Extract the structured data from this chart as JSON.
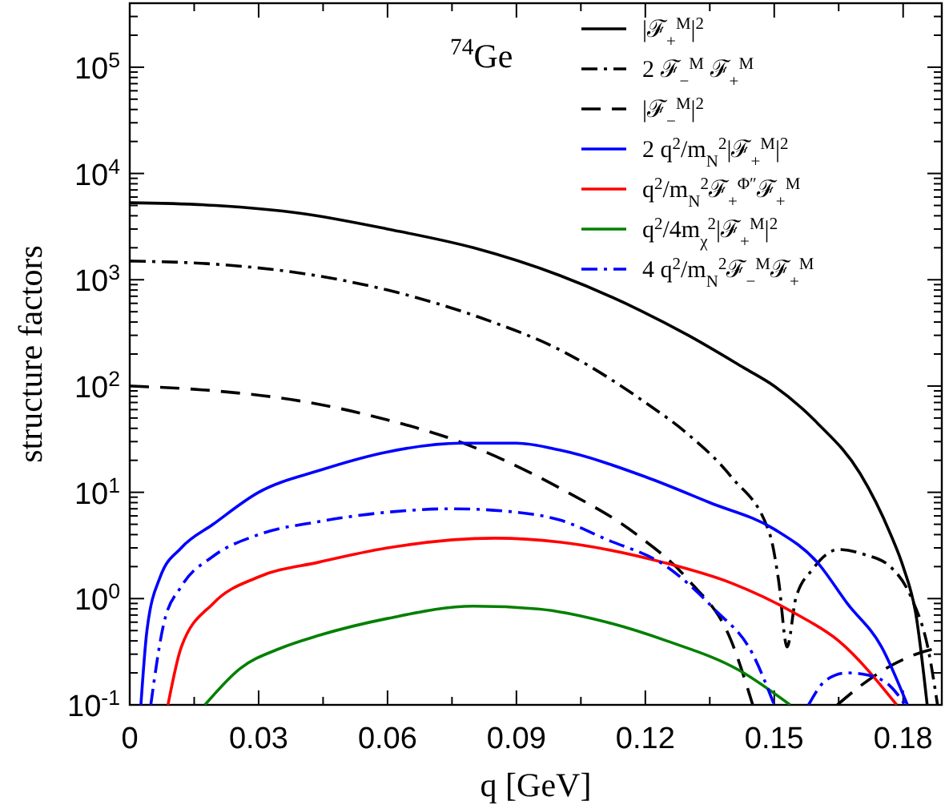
{
  "chart_data": {
    "type": "line",
    "xlabel": "q [GeV]",
    "ylabel": "structure factors",
    "log": "y",
    "legend": "top right",
    "grid": false,
    "annotations": [
      "$^{74}$Ge"
    ],
    "xlim": [
      0,
      0.189
    ],
    "ylim": [
      0.1,
      400000
    ],
    "xticks": [
      0,
      {
        "value": 0.015,
        "label": null
      },
      0.03,
      {
        "value": 0.045,
        "label": null
      },
      0.06,
      {
        "value": 0.075,
        "label": null
      },
      0.09,
      {
        "value": 0.105,
        "label": null
      },
      0.12,
      {
        "value": 0.135,
        "label": null
      },
      0.15,
      {
        "value": 0.165,
        "label": null
      },
      0.18
    ],
    "yticks": [
      {
        "value": 0.1,
        "label": "10$^{-1}$"
      },
      {
        "value": 0.2,
        "label": null
      },
      {
        "value": 0.3,
        "label": null
      },
      {
        "value": 0.4,
        "label": null
      },
      {
        "value": 0.5,
        "label": null
      },
      {
        "value": 0.6,
        "label": null
      },
      {
        "value": 0.7,
        "label": null
      },
      {
        "value": 0.8,
        "label": null
      },
      {
        "value": 0.9,
        "label": null
      },
      {
        "value": 1,
        "label": "10$^{0}$"
      },
      {
        "value": 2,
        "label": null
      },
      {
        "value": 3,
        "label": null
      },
      {
        "value": 4,
        "label": null
      },
      {
        "value": 5,
        "label": null
      },
      {
        "value": 6,
        "label": null
      },
      {
        "value": 7,
        "label": null
      },
      {
        "value": 8,
        "label": null
      },
      {
        "value": 9,
        "label": null
      },
      {
        "value": 10,
        "label": "10$^{1}$"
      },
      {
        "value": 20,
        "label": null
      },
      {
        "value": 30,
        "label": null
      },
      {
        "value": 40,
        "label": null
      },
      {
        "value": 50,
        "label": null
      },
      {
        "value": 60,
        "label": null
      },
      {
        "value": 70,
        "label": null
      },
      {
        "value": 80,
        "label": null
      },
      {
        "value": 90,
        "label": null
      },
      {
        "value": 100,
        "label": "10$^{2}$"
      },
      {
        "value": 200,
        "label": null
      },
      {
        "value": 300,
        "label": null
      },
      {
        "value": 400,
        "label": null
      },
      {
        "value": 500,
        "label": null
      },
      {
        "value": 600,
        "label": null
      },
      {
        "value": 700,
        "label": null
      },
      {
        "value": 800,
        "label": null
      },
      {
        "value": 900,
        "label": null
      },
      {
        "value": 1000,
        "label": "10$^{3}$"
      },
      {
        "value": 2000,
        "label": null
      },
      {
        "value": 3000,
        "label": null
      },
      {
        "value": 4000,
        "label": null
      },
      {
        "value": 5000,
        "label": null
      },
      {
        "value": 6000,
        "label": null
      },
      {
        "value": 7000,
        "label": null
      },
      {
        "value": 8000,
        "label": null
      },
      {
        "value": 9000,
        "label": null
      },
      {
        "value": 10000,
        "label": "10$^{4}$"
      },
      {
        "value": 20000,
        "label": null
      },
      {
        "value": 30000,
        "label": null
      },
      {
        "value": 40000,
        "label": null
      },
      {
        "value": 50000,
        "label": null
      },
      {
        "value": 60000,
        "label": null
      },
      {
        "value": 70000,
        "label": null
      },
      {
        "value": 80000,
        "label": null
      },
      {
        "value": 90000,
        "label": null
      },
      {
        "value": 100000,
        "label": "10$^{5}$"
      },
      {
        "value": 200000,
        "label": null
      },
      {
        "value": 300000,
        "label": null
      }
    ],
    "series": [
      {
        "name": "|ℱ$_{+}$$^{M}$|$^{2}$",
        "color": "#000000",
        "line_style": "solid",
        "x": [
          0,
          0.02,
          0.04,
          0.06,
          0.08,
          0.1,
          0.119,
          0.13,
          0.143,
          0.15,
          0.16,
          0.17,
          0.177,
          0.18,
          0.183,
          0.1856
        ],
        "values": [
          5300,
          5000,
          4200,
          3000,
          2000,
          1100,
          510,
          300,
          148,
          100,
          45,
          15,
          4.1,
          2,
          0.7,
          0.1
        ]
      },
      {
        "name": "2 ℱ$_{−}$$^{M}$ ℱ$_{+}$$^{M}$",
        "color": "#000000",
        "line_style": "dashdot",
        "x": [
          0,
          0.02,
          0.04,
          0.06,
          0.0816,
          0.1,
          0.12,
          0.13,
          0.14,
          0.149,
          0.151,
          0.153,
          0.155,
          0.159,
          0.165,
          0.171,
          0.177,
          0.182,
          0.186,
          0.188
        ],
        "values": [
          1500,
          1400,
          1150,
          800,
          440,
          220,
          70,
          35,
          14,
          4,
          1.5,
          0.35,
          1,
          1.9,
          2.9,
          2.6,
          2,
          1,
          0.31,
          0.1
        ]
      },
      {
        "name": "|ℱ$_{−}$$^{M}$|$^{2}$",
        "color": "#000000",
        "line_style": "dashed",
        "x": [
          0,
          0.02,
          0.04,
          0.06,
          0.0767,
          0.1,
          0.118,
          0.13,
          0.14,
          0.145,
          0.155,
          0.1647,
          0.17,
          0.176,
          0.183,
          0.189
        ],
        "values": [
          100,
          90,
          72,
          48,
          30,
          11,
          4,
          1.5,
          0.4,
          0.1,
          null,
          0.1,
          0.15,
          0.22,
          0.3,
          0.35
        ]
      },
      {
        "name": "2 q$^{2}$/m$_{N}$$^{2}$|ℱ$_{+}$$^{M}$|$^{2}$",
        "color": "#0000ff",
        "line_style": "solid",
        "x": [
          0.0026,
          0.004,
          0.0071,
          0.012,
          0.0194,
          0.03,
          0.044,
          0.06,
          0.077,
          0.09,
          0.1,
          0.12,
          0.135,
          0.15,
          0.16,
          0.167,
          0.175,
          0.181
        ],
        "values": [
          0.1,
          0.5,
          1.6,
          3,
          5,
          10,
          16,
          24,
          29,
          29,
          25,
          14,
          8,
          4.5,
          2.2,
          0.9,
          0.35,
          0.1
        ]
      },
      {
        "name": "q$^{2}$/m$_{N}$$^{2}$ℱ$_{+}$$^{Φ″}$ℱ$_{+}$$^{M}$",
        "color": "#ff0000",
        "line_style": "solid",
        "x": [
          0.0089,
          0.012,
          0.0194,
          0.03,
          0.044,
          0.06,
          0.085,
          0.1,
          0.111,
          0.124,
          0.14,
          0.155,
          0.165,
          0.1785
        ],
        "values": [
          0.1,
          0.35,
          0.9,
          1.6,
          2.2,
          3,
          3.7,
          3.4,
          2.9,
          2.2,
          1.4,
          0.72,
          0.4,
          0.1
        ]
      },
      {
        "name": "q$^{2}$/4m$_{χ}$$^{2}$|ℱ$_{+}$$^{M}$|$^{2}$",
        "color": "#008000",
        "line_style": "solid",
        "x": [
          0.0175,
          0.0257,
          0.035,
          0.044,
          0.06,
          0.08,
          0.095,
          0.111,
          0.125,
          0.142,
          0.1537
        ],
        "values": [
          0.1,
          0.22,
          0.34,
          0.45,
          0.65,
          0.85,
          0.8,
          0.6,
          0.4,
          0.21,
          0.1
        ]
      },
      {
        "name": "4 q$^{2}$/m$_{N}$$^{2}$ℱ$_{−}$$^{M}$ℱ$_{+}$$^{M}$",
        "color": "#0000ff",
        "line_style": "dashdot",
        "x": [
          0.0049,
          0.008,
          0.012,
          0.0194,
          0.03,
          0.044,
          0.06,
          0.075,
          0.09,
          0.1,
          0.111,
          0.125,
          0.136,
          0.145,
          0.15,
          0.154,
          0.158,
          0.162,
          0.167,
          0.172,
          0.177,
          0.1805
        ],
        "values": [
          0.1,
          0.6,
          1.3,
          2.5,
          4,
          5.3,
          6.5,
          7,
          6.5,
          5.5,
          3.6,
          2,
          0.8,
          0.3,
          0.1,
          null,
          0.1,
          0.17,
          0.2,
          0.19,
          0.15,
          0.1
        ]
      }
    ]
  }
}
